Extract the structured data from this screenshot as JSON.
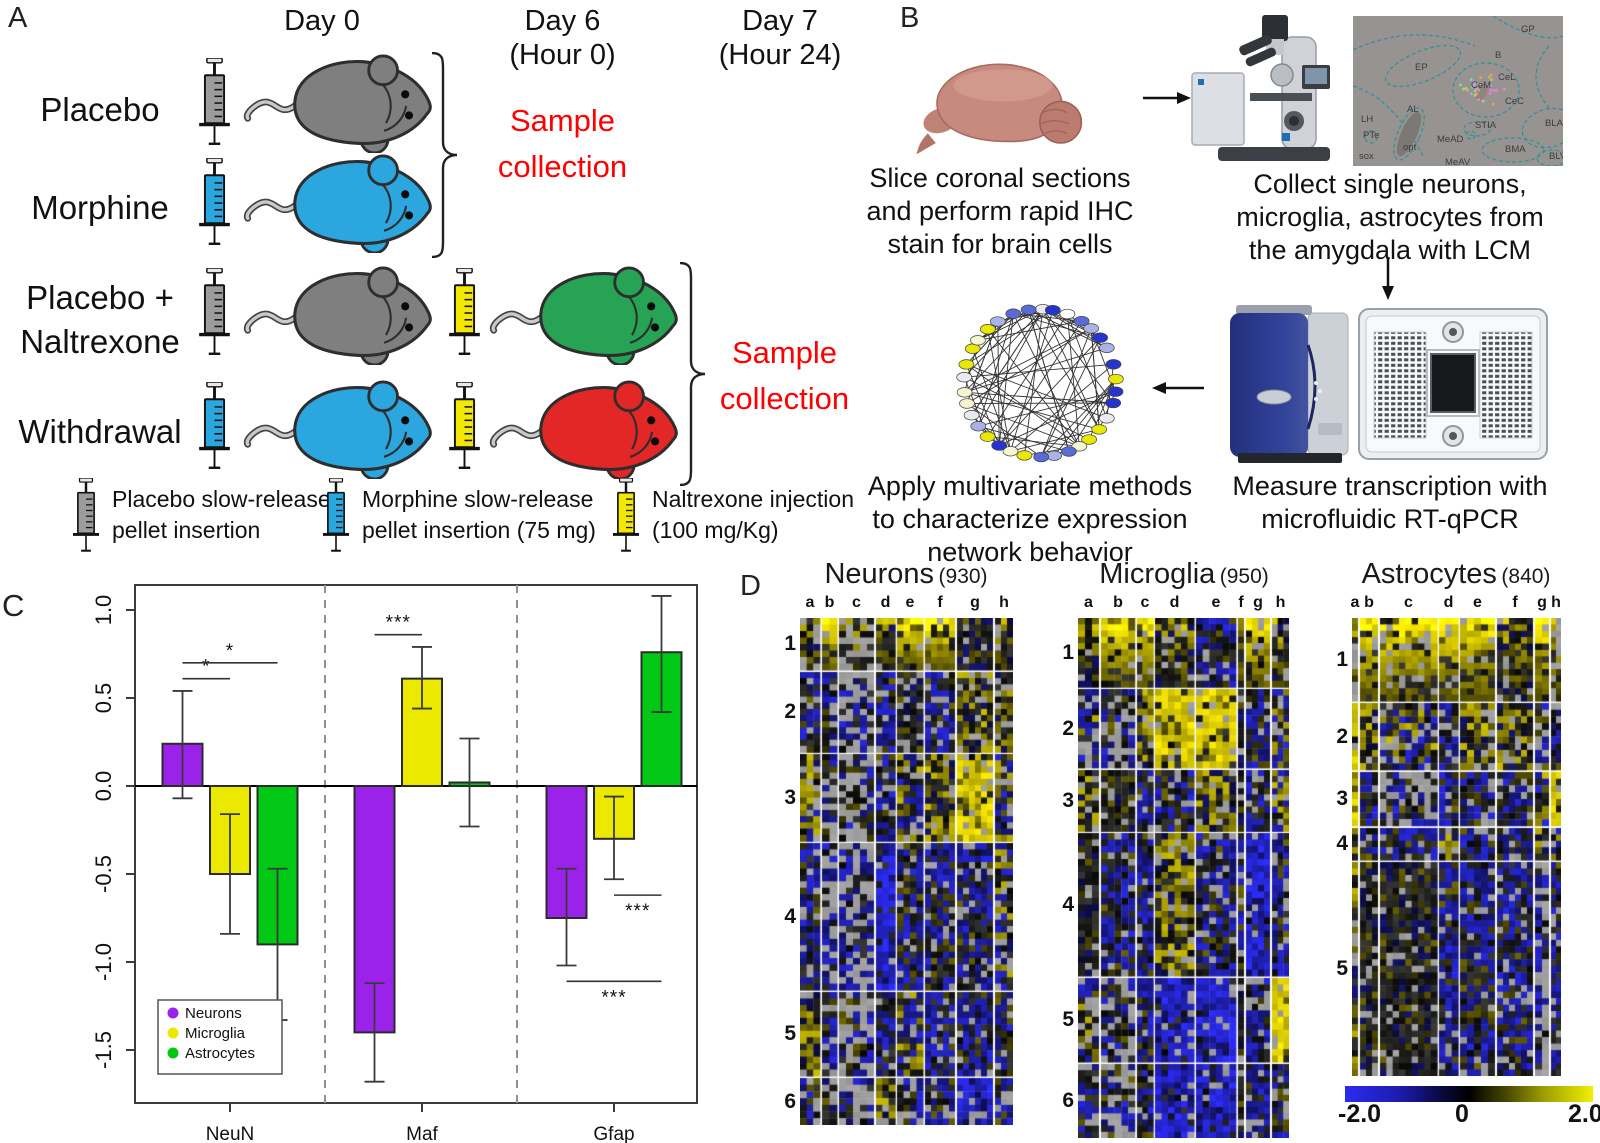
{
  "panelA": {
    "label": "A",
    "day_headers": [
      {
        "line1": "Day 0",
        "line2": ""
      },
      {
        "line1": "Day 6",
        "line2": "(Hour 0)"
      },
      {
        "line1": "Day 7",
        "line2": "(Hour 24)"
      }
    ],
    "rows": [
      {
        "label_lines": [
          "Placebo"
        ],
        "pellet_syringe": "gray",
        "day0_mouse": "gray"
      },
      {
        "label_lines": [
          "Morphine"
        ],
        "pellet_syringe": "blue",
        "day0_mouse": "blue"
      },
      {
        "label_lines": [
          "Placebo +",
          "Naltrexone"
        ],
        "pellet_syringe": "gray",
        "day0_mouse": "gray",
        "injection_syringe": "yellow",
        "day6_mouse": "green"
      },
      {
        "label_lines": [
          "Withdrawal"
        ],
        "pellet_syringe": "blue",
        "day0_mouse": "blue",
        "injection_syringe": "yellow",
        "day6_mouse": "red"
      }
    ],
    "sample_collection": [
      "Sample",
      "collection"
    ],
    "legend": [
      {
        "syringe": "gray",
        "line1": "Placebo slow-release",
        "line2": "pellet insertion"
      },
      {
        "syringe": "blue",
        "line1": "Morphine slow-release",
        "line2": "pellet insertion (75 mg)"
      },
      {
        "syringe": "yellow",
        "line1": "Naltrexone injection",
        "line2": "(100 mg/Kg)"
      }
    ],
    "colors": {
      "gray": "#7f7f7f",
      "blue": "#2ba6df",
      "green": "#27a355",
      "red": "#e32626"
    },
    "syringe_colors": {
      "gray": "#9c9c9c",
      "blue": "#2ba6df",
      "yellow": "#f2e705"
    }
  },
  "panelB": {
    "label": "B",
    "step1_lines": [
      "Slice coronal sections",
      "and perform rapid IHC",
      "stain for brain cells"
    ],
    "step2_lines": [
      "Collect single neurons,",
      "microglia, astrocytes from",
      "the amygdala with LCM"
    ],
    "step3_lines": [
      "Measure transcription with",
      "microfluidic RT-qPCR"
    ],
    "step4_lines": [
      "Apply multivariate methods",
      "to characterize expression",
      "network behavior"
    ],
    "brain_region_labels": [
      "GP",
      "EP",
      "B",
      "CeL",
      "CeM",
      "CeC",
      "AL",
      "LH",
      "PTe",
      "opt",
      "sox",
      "MeAD",
      "STIA",
      "BLA",
      "BMA",
      "BLV",
      "MeAV"
    ],
    "network_node_colors": [
      "#2633cc",
      "#5a6ad8",
      "#aab2e8",
      "#e9e9ef",
      "#f5f5d0",
      "#e8e800",
      "#fdfdfd"
    ]
  },
  "panelC": {
    "label": "C"
  },
  "chart_data": {
    "type": "bar",
    "title": "",
    "xlabel": "",
    "ylabel": "",
    "categories": [
      "NeuN",
      "Maf",
      "Gfap"
    ],
    "series": [
      {
        "name": "Neurons",
        "color": "#9b22e8",
        "values": [
          0.24,
          -1.4,
          -0.75
        ],
        "err_low": [
          -0.07,
          -1.68,
          -1.02
        ],
        "err_high": [
          0.54,
          -1.12,
          -0.47
        ]
      },
      {
        "name": "Microglia",
        "color": "#ece900",
        "values": [
          -0.5,
          0.61,
          -0.3
        ],
        "err_low": [
          -0.84,
          0.44,
          -0.53
        ],
        "err_high": [
          -0.16,
          0.79,
          -0.06
        ]
      },
      {
        "name": "Astrocytes",
        "color": "#00c814",
        "values": [
          -0.9,
          0.02,
          0.76
        ],
        "err_low": [
          -1.33,
          -0.23,
          0.42
        ],
        "err_high": [
          -0.47,
          0.27,
          1.08
        ]
      }
    ],
    "yticks": [
      "1.0",
      "0.5",
      "0.0",
      "-0.5",
      "-1.0",
      "-1.5"
    ],
    "ytick_values": [
      1.0,
      0.5,
      0.0,
      -0.5,
      -1.0,
      -1.5
    ],
    "ylim": [
      -1.8,
      1.14
    ],
    "grid": false,
    "category_dividers": "dashed",
    "legend_position": "bottom-left",
    "significance": [
      {
        "category": 0,
        "from": 0,
        "to": 1,
        "label": "*",
        "y": 0.61,
        "side": "above"
      },
      {
        "category": 0,
        "from": 0,
        "to": 2,
        "label": "*",
        "y": 0.7,
        "side": "above"
      },
      {
        "category": 1,
        "from": 0,
        "to": 1,
        "label": "***",
        "y": 0.86,
        "side": "above"
      },
      {
        "category": 2,
        "from": 1,
        "to": 2,
        "label": "***",
        "y": -0.62,
        "side": "below"
      },
      {
        "category": 2,
        "from": 0,
        "to": 2,
        "label": "***",
        "y": -1.11,
        "side": "below"
      }
    ]
  },
  "panelD": {
    "label": "D",
    "heatmaps": [
      {
        "title": "Neurons",
        "count": "(930)",
        "columns": [
          "a",
          "b",
          "c",
          "d",
          "e",
          "f",
          "g",
          "h"
        ],
        "rows": [
          "1",
          "2",
          "3",
          "4",
          "5",
          "6"
        ],
        "blocks": [
          [
            "y",
            "Y",
            "H",
            "y",
            "Y",
            "Y",
            "K",
            "y"
          ],
          [
            "b",
            "b",
            "J",
            "b",
            "K",
            "b",
            "y",
            "y"
          ],
          [
            "M",
            "G",
            "G",
            "b",
            "M",
            "y",
            "Y",
            "M"
          ],
          [
            "b",
            "J",
            "J",
            "B",
            "b",
            "b",
            "b",
            "M"
          ],
          [
            "y",
            "b",
            "G",
            "b",
            "M",
            "b",
            "b",
            "b"
          ],
          [
            "b",
            "K",
            "G",
            "y",
            "G",
            "b",
            "B",
            "b"
          ]
        ]
      },
      {
        "title": "Microglia",
        "count": "(950)",
        "columns": [
          "a",
          "b",
          "c",
          "d",
          "e",
          "f",
          "g",
          "h"
        ],
        "rows": [
          "1",
          "2",
          "3",
          "4",
          "5",
          "6"
        ],
        "blocks": [
          [
            "y",
            "Y",
            "Y",
            "y",
            "b",
            "y",
            "Y",
            "y"
          ],
          [
            "M",
            "G",
            "y",
            "Y",
            "Y",
            "K",
            "b",
            "M"
          ],
          [
            "y",
            "K",
            "b",
            "b",
            "y",
            "K",
            "b",
            "M"
          ],
          [
            "K",
            "b",
            "b",
            "y",
            "b",
            "b",
            "B",
            "b"
          ],
          [
            "M",
            "G",
            "b",
            "B",
            "B",
            "K",
            "b",
            "Y"
          ],
          [
            "b",
            "G",
            "b",
            "B",
            "B",
            "K",
            "b",
            "b"
          ]
        ]
      },
      {
        "title": "Astrocytes",
        "count": "(840)",
        "columns": [
          "a",
          "b",
          "c",
          "d",
          "e",
          "f",
          "g",
          "h"
        ],
        "rows": [
          "1",
          "2",
          "3",
          "4",
          "5"
        ],
        "blocks": [
          [
            "H",
            "Y",
            "Y",
            "Y",
            "Y",
            "y",
            "Y",
            "H"
          ],
          [
            "Y",
            "y",
            "M",
            "b",
            "y",
            "y",
            "b",
            "b"
          ],
          [
            "Y",
            "b",
            "G",
            "b",
            "b",
            "b",
            "M",
            "Y"
          ],
          [
            "y",
            "b",
            "b",
            "M",
            "b",
            "b",
            "y",
            "M"
          ],
          [
            "y",
            "K",
            "K",
            "b",
            "b",
            "b",
            "J",
            "b"
          ]
        ]
      }
    ],
    "colorbar": {
      "min": "-2.0",
      "mid": "0",
      "max": "2.0"
    }
  }
}
